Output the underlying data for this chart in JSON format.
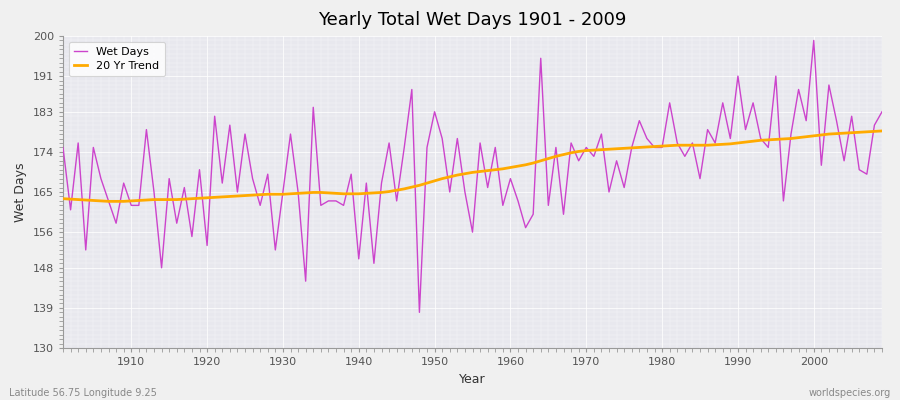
{
  "title": "Yearly Total Wet Days 1901 - 2009",
  "xlabel": "Year",
  "ylabel": "Wet Days",
  "subtitle_left": "Latitude 56.75 Longitude 9.25",
  "subtitle_right": "worldspecies.org",
  "ylim": [
    130,
    200
  ],
  "yticks": [
    130,
    139,
    148,
    156,
    165,
    174,
    183,
    191,
    200
  ],
  "xlim": [
    1901,
    2009
  ],
  "xticks": [
    1910,
    1920,
    1930,
    1940,
    1950,
    1960,
    1970,
    1980,
    1990,
    2000
  ],
  "line_color": "#cc44cc",
  "trend_color": "#ffaa00",
  "fig_bg_color": "#f0f0f0",
  "plot_bg_color": "#e8e8ee",
  "years": [
    1901,
    1902,
    1903,
    1904,
    1905,
    1906,
    1907,
    1908,
    1909,
    1910,
    1911,
    1912,
    1913,
    1914,
    1915,
    1916,
    1917,
    1918,
    1919,
    1920,
    1921,
    1922,
    1923,
    1924,
    1925,
    1926,
    1927,
    1928,
    1929,
    1930,
    1931,
    1932,
    1933,
    1934,
    1935,
    1936,
    1937,
    1938,
    1939,
    1940,
    1941,
    1942,
    1943,
    1944,
    1945,
    1946,
    1947,
    1948,
    1949,
    1950,
    1951,
    1952,
    1953,
    1954,
    1955,
    1956,
    1957,
    1958,
    1959,
    1960,
    1961,
    1962,
    1963,
    1964,
    1965,
    1966,
    1967,
    1968,
    1969,
    1970,
    1971,
    1972,
    1973,
    1974,
    1975,
    1976,
    1977,
    1978,
    1979,
    1980,
    1981,
    1982,
    1983,
    1984,
    1985,
    1986,
    1987,
    1988,
    1989,
    1990,
    1991,
    1992,
    1993,
    1994,
    1995,
    1996,
    1997,
    1998,
    1999,
    2000,
    2001,
    2002,
    2003,
    2004,
    2005,
    2006,
    2007,
    2008,
    2009
  ],
  "wet_days": [
    175,
    161,
    176,
    152,
    175,
    168,
    163,
    158,
    167,
    162,
    162,
    179,
    165,
    148,
    168,
    158,
    166,
    155,
    170,
    153,
    182,
    167,
    180,
    165,
    178,
    168,
    162,
    169,
    152,
    165,
    178,
    165,
    145,
    184,
    162,
    163,
    163,
    162,
    169,
    150,
    167,
    149,
    167,
    176,
    163,
    175,
    188,
    138,
    175,
    183,
    177,
    165,
    177,
    165,
    156,
    176,
    166,
    175,
    162,
    168,
    163,
    157,
    160,
    195,
    162,
    175,
    160,
    176,
    172,
    175,
    173,
    178,
    165,
    172,
    166,
    175,
    181,
    177,
    175,
    175,
    185,
    176,
    173,
    176,
    168,
    179,
    176,
    185,
    177,
    191,
    179,
    185,
    177,
    175,
    191,
    163,
    178,
    188,
    181,
    199,
    171,
    189,
    181,
    172,
    182,
    170,
    169,
    180,
    183
  ],
  "trend_years": [
    1901,
    1902,
    1903,
    1904,
    1905,
    1906,
    1907,
    1908,
    1909,
    1910,
    1911,
    1912,
    1913,
    1914,
    1915,
    1916,
    1917,
    1918,
    1919,
    1920,
    1921,
    1922,
    1923,
    1924,
    1925,
    1926,
    1927,
    1928,
    1929,
    1930,
    1931,
    1932,
    1933,
    1934,
    1935,
    1936,
    1937,
    1938,
    1939,
    1940,
    1941,
    1942,
    1943,
    1944,
    1945,
    1946,
    1947,
    1948,
    1949,
    1950,
    1951,
    1952,
    1953,
    1954,
    1955,
    1956,
    1957,
    1958,
    1959,
    1960,
    1961,
    1962,
    1963,
    1964,
    1965,
    1966,
    1967,
    1968,
    1969,
    1970,
    1971,
    1972,
    1973,
    1974,
    1975,
    1976,
    1977,
    1978,
    1979,
    1980,
    1981,
    1982,
    1983,
    1984,
    1985,
    1986,
    1987,
    1988,
    1989,
    1990,
    1991,
    1992,
    1993,
    1994,
    1995,
    1996,
    1997,
    1998,
    1999,
    2000,
    2001,
    2002,
    2003,
    2004,
    2005,
    2006,
    2007,
    2008,
    2009
  ],
  "trend_vals": [
    163.5,
    163.4,
    163.3,
    163.2,
    163.1,
    163.0,
    162.9,
    162.9,
    162.9,
    163.0,
    163.1,
    163.2,
    163.3,
    163.3,
    163.3,
    163.3,
    163.4,
    163.5,
    163.6,
    163.7,
    163.8,
    163.9,
    164.0,
    164.1,
    164.2,
    164.3,
    164.4,
    164.5,
    164.5,
    164.5,
    164.6,
    164.7,
    164.8,
    164.9,
    164.9,
    164.8,
    164.7,
    164.6,
    164.6,
    164.6,
    164.7,
    164.8,
    164.9,
    165.1,
    165.4,
    165.7,
    166.1,
    166.5,
    167.0,
    167.5,
    168.0,
    168.4,
    168.8,
    169.1,
    169.4,
    169.6,
    169.8,
    170.0,
    170.2,
    170.5,
    170.8,
    171.1,
    171.5,
    172.0,
    172.5,
    173.0,
    173.4,
    173.8,
    174.1,
    174.3,
    174.4,
    174.5,
    174.6,
    174.7,
    174.8,
    174.9,
    175.0,
    175.1,
    175.2,
    175.3,
    175.4,
    175.5,
    175.5,
    175.5,
    175.5,
    175.5,
    175.6,
    175.7,
    175.8,
    176.0,
    176.2,
    176.4,
    176.6,
    176.7,
    176.8,
    176.9,
    177.0,
    177.2,
    177.4,
    177.6,
    177.8,
    178.0,
    178.1,
    178.2,
    178.3,
    178.4,
    178.5,
    178.6,
    178.7
  ]
}
